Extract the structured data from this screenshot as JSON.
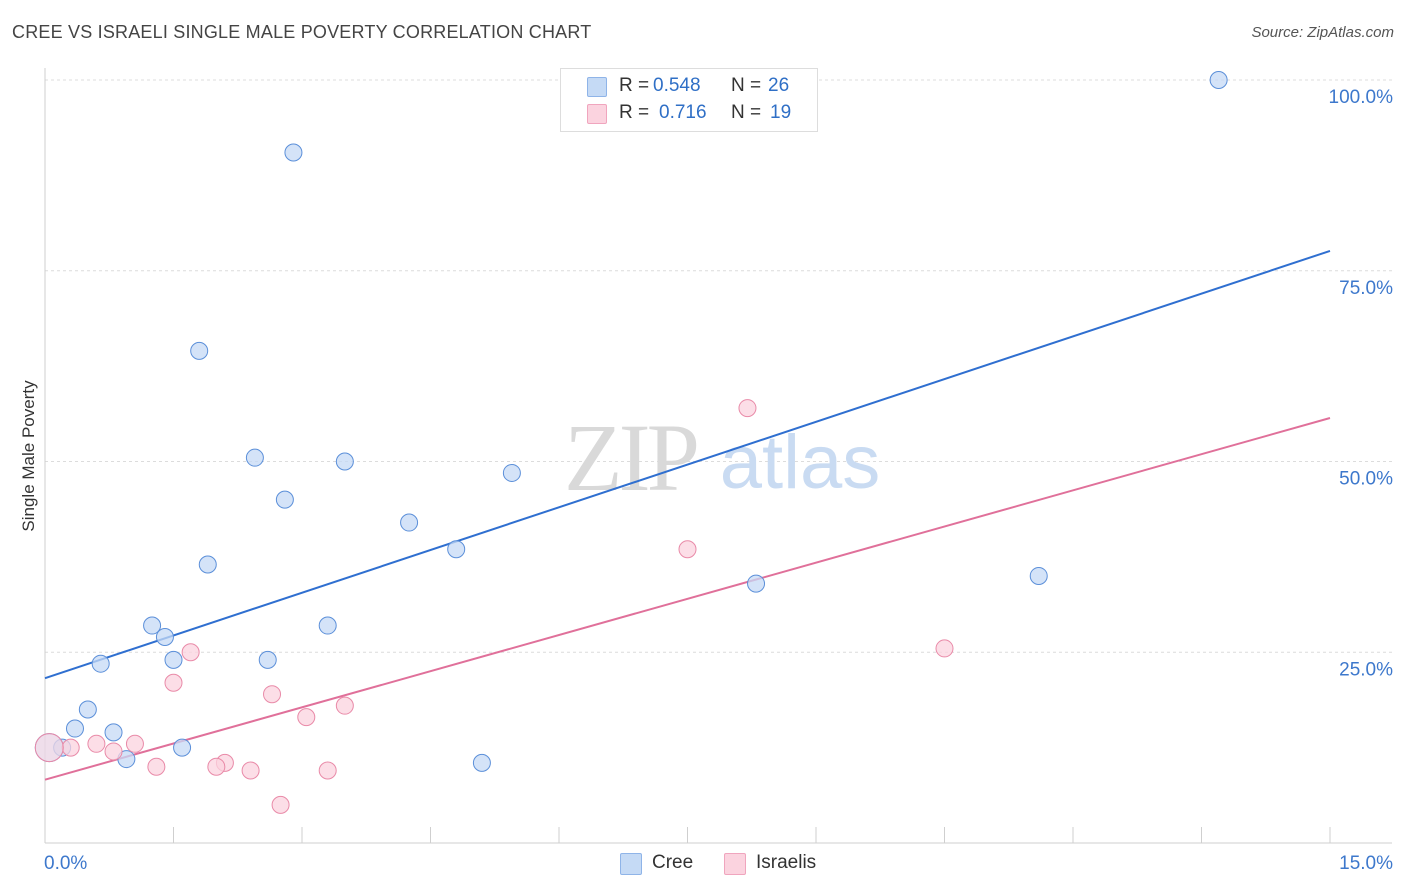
{
  "header": {
    "title": "CREE VS ISRAELI SINGLE MALE POVERTY CORRELATION CHART",
    "source": "Source: ZipAtlas.com"
  },
  "watermark": {
    "zip": "ZIP",
    "atlas": "atlas"
  },
  "stats": {
    "r_label": "R =",
    "n_label": "N =",
    "rows": [
      {
        "series": "Cree",
        "r": "0.548",
        "n": "26",
        "color": "#a9c9f0"
      },
      {
        "series": "Israelis",
        "r": "0.716",
        "n": "19",
        "color": "#f6b8cc"
      }
    ]
  },
  "chart_data": {
    "type": "scatter",
    "title": "CREE VS ISRAELI SINGLE MALE POVERTY CORRELATION CHART",
    "xlabel": "",
    "ylabel": "Single Male Poverty",
    "xlim": [
      0,
      15
    ],
    "ylim": [
      0,
      100
    ],
    "x_tick_labels": [
      "0.0%",
      "15.0%"
    ],
    "y_ticks": [
      25,
      50,
      75,
      100
    ],
    "y_tick_labels": [
      "25.0%",
      "50.0%",
      "75.0%",
      "100.0%"
    ],
    "grid": true,
    "legend": [
      "Cree",
      "Israelis"
    ],
    "series": [
      {
        "name": "Cree",
        "color": "#5b8fd9",
        "fill": "#c5daf5",
        "trend": {
          "x": [
            0,
            15
          ],
          "y": [
            21.6,
            77.6
          ],
          "color": "#2f6fd0"
        },
        "points": [
          {
            "x": 2.9,
            "y": 90.5
          },
          {
            "x": 13.7,
            "y": 100.0
          },
          {
            "x": 1.8,
            "y": 64.5
          },
          {
            "x": 2.45,
            "y": 50.5
          },
          {
            "x": 3.5,
            "y": 50.0
          },
          {
            "x": 5.45,
            "y": 48.5
          },
          {
            "x": 2.8,
            "y": 45.0
          },
          {
            "x": 4.25,
            "y": 42.0
          },
          {
            "x": 4.8,
            "y": 38.5
          },
          {
            "x": 1.9,
            "y": 36.5
          },
          {
            "x": 8.3,
            "y": 34.0
          },
          {
            "x": 11.6,
            "y": 35.0
          },
          {
            "x": 1.25,
            "y": 28.5
          },
          {
            "x": 1.4,
            "y": 27.0
          },
          {
            "x": 3.3,
            "y": 28.5
          },
          {
            "x": 0.65,
            "y": 23.5
          },
          {
            "x": 1.5,
            "y": 24.0
          },
          {
            "x": 2.6,
            "y": 24.0
          },
          {
            "x": 0.5,
            "y": 17.5
          },
          {
            "x": 0.35,
            "y": 15.0
          },
          {
            "x": 0.8,
            "y": 14.5
          },
          {
            "x": 0.2,
            "y": 12.5
          },
          {
            "x": 1.6,
            "y": 12.5
          },
          {
            "x": 0.95,
            "y": 11.0
          },
          {
            "x": 5.1,
            "y": 10.5
          },
          {
            "x": 0.05,
            "y": 12.5
          }
        ]
      },
      {
        "name": "Israelis",
        "color": "#e98aa8",
        "fill": "#fbd3df",
        "trend": {
          "x": [
            0,
            15
          ],
          "y": [
            8.3,
            55.7
          ],
          "color": "#e0709a"
        },
        "points": [
          {
            "x": 8.2,
            "y": 57.0
          },
          {
            "x": 7.5,
            "y": 38.5
          },
          {
            "x": 10.5,
            "y": 25.5
          },
          {
            "x": 1.7,
            "y": 25.0
          },
          {
            "x": 1.5,
            "y": 21.0
          },
          {
            "x": 2.65,
            "y": 19.5
          },
          {
            "x": 3.5,
            "y": 18.0
          },
          {
            "x": 3.05,
            "y": 16.5
          },
          {
            "x": 0.6,
            "y": 13.0
          },
          {
            "x": 1.05,
            "y": 13.0
          },
          {
            "x": 0.8,
            "y": 12.0
          },
          {
            "x": 0.3,
            "y": 12.5
          },
          {
            "x": 2.1,
            "y": 10.5
          },
          {
            "x": 2.0,
            "y": 10.0
          },
          {
            "x": 2.4,
            "y": 9.5
          },
          {
            "x": 3.3,
            "y": 9.5
          },
          {
            "x": 1.3,
            "y": 10.0
          },
          {
            "x": 2.75,
            "y": 5.0
          },
          {
            "x": 0.05,
            "y": 12.5
          }
        ]
      }
    ]
  }
}
